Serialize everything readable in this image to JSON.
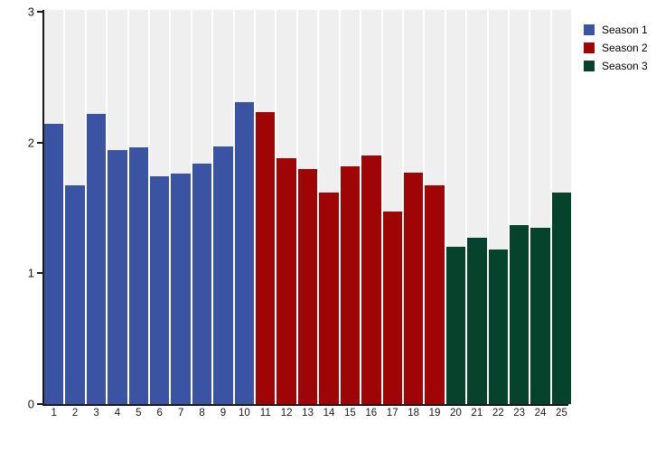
{
  "chart_data": {
    "type": "bar",
    "title": "",
    "xlabel": "",
    "ylabel": "",
    "ylim": [
      0,
      3
    ],
    "yticks": [
      "0",
      "1",
      "2",
      "3"
    ],
    "grid": false,
    "plot_background": "#efefef",
    "legend_position": "top-right-outside",
    "categories": [
      "1",
      "2",
      "3",
      "4",
      "5",
      "6",
      "7",
      "8",
      "9",
      "10",
      "11",
      "12",
      "13",
      "14",
      "15",
      "16",
      "17",
      "18",
      "19",
      "20",
      "21",
      "22",
      "23",
      "24",
      "25"
    ],
    "series": [
      {
        "name": "Season 1",
        "color": "#3a53a3",
        "categories": [
          "1",
          "2",
          "3",
          "4",
          "5",
          "6",
          "7",
          "8",
          "9",
          "10"
        ],
        "values": [
          2.14,
          1.67,
          2.22,
          1.94,
          1.96,
          1.74,
          1.76,
          1.84,
          1.97,
          2.31
        ]
      },
      {
        "name": "Season 2",
        "color": "#a00505",
        "categories": [
          "11",
          "12",
          "13",
          "14",
          "15",
          "16",
          "17",
          "18",
          "19"
        ],
        "values": [
          2.23,
          1.88,
          1.8,
          1.62,
          1.82,
          1.9,
          1.47,
          1.77,
          1.67
        ]
      },
      {
        "name": "Season 3",
        "color": "#05432d",
        "categories": [
          "20",
          "21",
          "22",
          "23",
          "24",
          "25"
        ],
        "values": [
          1.2,
          1.27,
          1.18,
          1.37,
          1.35,
          1.62
        ]
      }
    ]
  },
  "legend": {
    "items": [
      {
        "label": "Season 1",
        "color": "#3a53a3"
      },
      {
        "label": "Season 2",
        "color": "#a00505"
      },
      {
        "label": "Season 3",
        "color": "#05432d"
      }
    ]
  },
  "axes": {
    "y_tick_labels": [
      "3",
      "2",
      "1",
      "0"
    ],
    "y_tick_values": [
      3,
      2,
      1,
      0
    ]
  }
}
